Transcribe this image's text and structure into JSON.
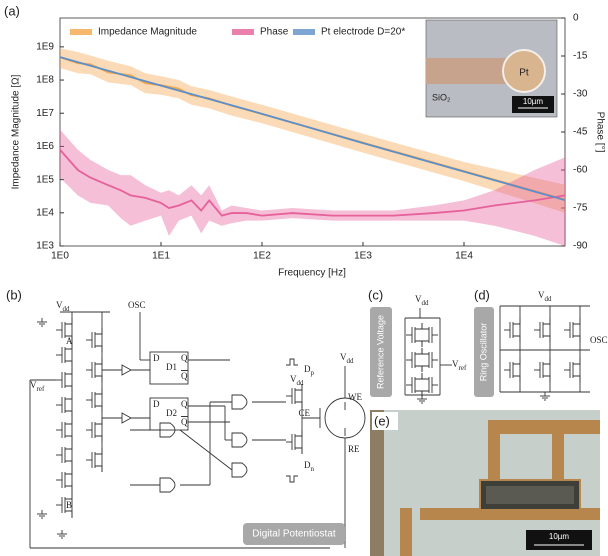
{
  "chart_data": {
    "type": "line",
    "xlabel": "Frequency [Hz]",
    "ylabel": "Impedance Magnitude [Ω]",
    "y2label": "Phase [°]",
    "xscale": "log",
    "yscale": "log",
    "xlim": [
      1,
      100000
    ],
    "ylim": [
      1000,
      7400000000
    ],
    "y2lim": [
      -90,
      0
    ],
    "xticks": [
      {
        "value": 1,
        "label": "1E0"
      },
      {
        "value": 10,
        "label": "1E1"
      },
      {
        "value": 100,
        "label": "1E2"
      },
      {
        "value": 1000,
        "label": "1E3"
      },
      {
        "value": 10000,
        "label": "1E4"
      }
    ],
    "yticks": [
      {
        "value": 1000,
        "label": "1E3"
      },
      {
        "value": 10000,
        "label": "1E4"
      },
      {
        "value": 100000,
        "label": "1E5"
      },
      {
        "value": 1000000,
        "label": "1E6"
      },
      {
        "value": 10000000,
        "label": "1E7"
      },
      {
        "value": 100000000,
        "label": "1E8"
      },
      {
        "value": 1000000000,
        "label": "1E9"
      }
    ],
    "y2ticks": [
      0,
      -15,
      -30,
      -45,
      -60,
      -75,
      -90
    ],
    "legend": "top-left",
    "series": [
      {
        "name": "Impedance Magnitude",
        "color": "#f5a54a",
        "axis": "y",
        "x": [
          1,
          1.5,
          2,
          3,
          5,
          7,
          10,
          15,
          20,
          30,
          50,
          100,
          1000,
          10000,
          100000
        ],
        "values": [
          490000000,
          320000000,
          300000000,
          170000000,
          140000000,
          80000000,
          70000000,
          55000000,
          35000000,
          28000000,
          17000000,
          9500000,
          1300000,
          180000,
          25000
        ],
        "upper": [
          900000000,
          700000000,
          550000000,
          380000000,
          260000000,
          160000000,
          130000000,
          100000000,
          65000000,
          50000000,
          32000000,
          18000000,
          2400000,
          340000,
          70000
        ],
        "lower": [
          230000000,
          160000000,
          150000000,
          85000000,
          70000000,
          40000000,
          36000000,
          28000000,
          18000000,
          14000000,
          8500000,
          5000000,
          650000,
          90000,
          10000
        ]
      },
      {
        "name": "Phase",
        "color": "#e6609a",
        "axis": "y2",
        "x": [
          1,
          1.5,
          2,
          3,
          4,
          5,
          7,
          10,
          12,
          15,
          20,
          25,
          30,
          40,
          50,
          70,
          100,
          200,
          500,
          1000,
          2000,
          5000,
          10000,
          20000,
          50000,
          100000
        ],
        "values": [
          -52,
          -60,
          -63,
          -66,
          -68,
          -70,
          -71,
          -73,
          -75,
          -74,
          -72,
          -76,
          -72,
          -78,
          -77,
          -77,
          -78,
          -77,
          -78,
          -78,
          -78,
          -77,
          -76,
          -74,
          -72,
          -70
        ],
        "upper": [
          -44,
          -52,
          -56,
          -60,
          -62,
          -62,
          -66,
          -69,
          -68,
          -70,
          -66,
          -70,
          -66,
          -76,
          -74,
          -75,
          -76,
          -75,
          -76,
          -76,
          -76,
          -74,
          -72,
          -68,
          -60,
          -55
        ],
        "lower": [
          -63,
          -70,
          -73,
          -74,
          -79,
          -82,
          -80,
          -78,
          -86,
          -80,
          -78,
          -85,
          -80,
          -82,
          -81,
          -80,
          -80,
          -79,
          -80,
          -80,
          -80,
          -80,
          -80,
          -82,
          -86,
          -90
        ]
      },
      {
        "name": "Pt electrode D=20*",
        "color": "#5b8fc9",
        "axis": "y",
        "x": [
          1,
          10,
          100,
          1000,
          10000,
          100000
        ],
        "values": [
          490000000,
          68000000,
          9600000,
          1260000,
          174000,
          24000
        ]
      }
    ]
  },
  "figure": {
    "panel_labels": [
      "(a)",
      "(b)",
      "(c)",
      "(d)",
      "(e)"
    ],
    "inset": {
      "electrode": "Pt",
      "substrate": "SiO₂",
      "scale_bar": "10µm"
    },
    "potentiostat": {
      "title": "Digital Potentiostat",
      "vdd_left": {
        "main": "V",
        "sub": "dd"
      },
      "node_a": "A",
      "node_b": "B",
      "osc": "OSC",
      "vref": {
        "main": "V",
        "sub": "ref"
      },
      "ff1": {
        "name": "D1",
        "d": "D",
        "q": "Q",
        "qbar": "Q"
      },
      "ff2": {
        "name": "D2",
        "d": "D",
        "q": "Q",
        "qbar": "Q"
      },
      "dp": {
        "main": "D",
        "sub": "p"
      },
      "dn": {
        "main": "D",
        "sub": "n"
      },
      "vdd_out": {
        "main": "V",
        "sub": "dd"
      },
      "vdd_cell": {
        "main": "V",
        "sub": "dd"
      },
      "we": "WE",
      "ce": "CE",
      "re": "RE"
    },
    "reference_voltage": {
      "title": "Reference Voltage",
      "vdd": {
        "main": "V",
        "sub": "dd"
      },
      "vref": {
        "main": "V",
        "sub": "ref"
      }
    },
    "ring_oscillator": {
      "title": "Ring Oscillator",
      "vdd": {
        "main": "V",
        "sub": "dd"
      },
      "osc": "OSC"
    },
    "micrograph": {
      "scale_bar": "10µm"
    }
  }
}
